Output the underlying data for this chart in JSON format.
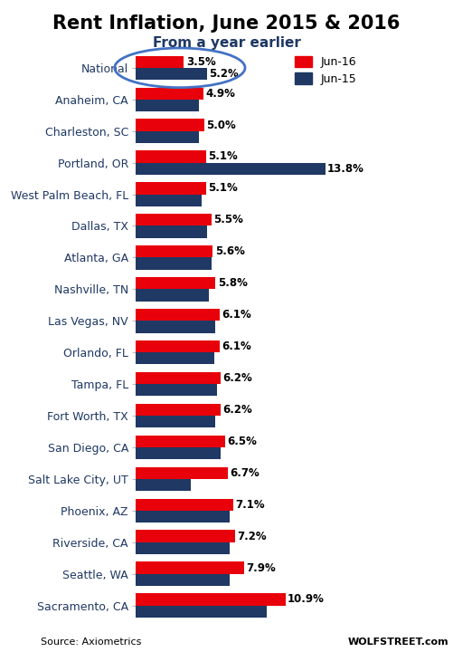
{
  "title": "Rent Inflation, June 2015 & 2016",
  "subtitle": "From a year earlier",
  "categories": [
    "National",
    "Anaheim, CA",
    "Charleston, SC",
    "Portland, OR",
    "West Palm Beach, FL",
    "Dallas, TX",
    "Atlanta, GA",
    "Nashville, TN",
    "Las Vegas, NV",
    "Orlando, FL",
    "Tampa, FL",
    "Fort Worth, TX",
    "San Diego, CA",
    "Salt Lake City, UT",
    "Phoenix, AZ",
    "Riverside, CA",
    "Seattle, WA",
    "Sacramento, CA"
  ],
  "jun16": [
    3.5,
    4.9,
    5.0,
    5.1,
    5.1,
    5.5,
    5.6,
    5.8,
    6.1,
    6.1,
    6.2,
    6.2,
    6.5,
    6.7,
    7.1,
    7.2,
    7.9,
    10.9
  ],
  "jun15": [
    5.2,
    4.6,
    4.6,
    13.8,
    4.8,
    5.2,
    5.5,
    5.3,
    5.8,
    5.7,
    5.9,
    5.8,
    6.2,
    4.0,
    6.8,
    6.8,
    6.8,
    9.5
  ],
  "color_jun16": "#e8000a",
  "color_jun15": "#1f3864",
  "label_color": "#1f3864",
  "background_color": "#ffffff",
  "source_text": "Source: Axiometrics",
  "watermark_text": "WOLFSTREET.com",
  "ellipse_color": "#4472c4",
  "bar_height": 0.38,
  "title_fontsize": 15,
  "subtitle_fontsize": 11,
  "ylabel_fontsize": 9,
  "value_fontsize": 8.5
}
